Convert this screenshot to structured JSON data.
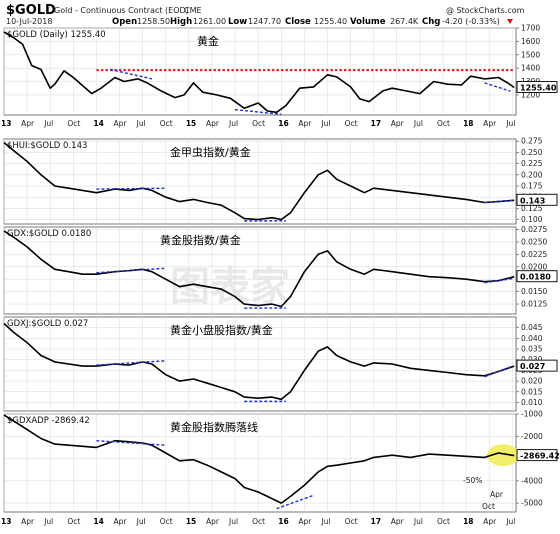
{
  "header": {
    "symbol": "$GOLD",
    "description": "Gold - Continuous Contract (EOD)",
    "exchange": "CME",
    "credit": "@ StockCharts.com",
    "date": "10-Jul-2018",
    "open_label": "Open",
    "open": "1258.50",
    "high_label": "High",
    "high": "1261.00",
    "low_label": "Low",
    "low": "1247.70",
    "close_label": "Close",
    "close": "1255.40",
    "volume_label": "Volume",
    "volume": "267.4K",
    "chg_label": "Chg",
    "chg": "-4.20 (-0.33%)"
  },
  "watermark": "图表家",
  "colors": {
    "price": "#000000",
    "trend_red": "#e01818",
    "trend_blue": "#2233cc",
    "highlight": "#f2ee6a",
    "grid": "#d8d8d8"
  },
  "chart_data": [
    {
      "type": "line",
      "panel_label": "$GOLD (Daily) 1255.40",
      "annotation": "黄金",
      "value_box": "1255.40",
      "ylim": [
        1050,
        1700
      ],
      "yticks": [
        "1700",
        "1600",
        "1500",
        "1400",
        "1300",
        "1200"
      ],
      "x": [
        2013.0,
        2013.1,
        2013.2,
        2013.3,
        2013.4,
        2013.5,
        2013.55,
        2013.65,
        2013.75,
        2013.85,
        2013.95,
        2014.05,
        2014.2,
        2014.3,
        2014.45,
        2014.55,
        2014.7,
        2014.85,
        2014.95,
        2015.05,
        2015.15,
        2015.3,
        2015.45,
        2015.6,
        2015.75,
        2015.85,
        2015.95,
        2016.05,
        2016.2,
        2016.35,
        2016.5,
        2016.6,
        2016.75,
        2016.85,
        2016.95,
        2017.1,
        2017.2,
        2017.35,
        2017.5,
        2017.65,
        2017.8,
        2017.95,
        2018.05,
        2018.2,
        2018.35,
        2018.45,
        2018.52
      ],
      "values": [
        1670,
        1630,
        1580,
        1420,
        1390,
        1250,
        1280,
        1380,
        1330,
        1270,
        1210,
        1250,
        1330,
        1300,
        1320,
        1290,
        1230,
        1180,
        1200,
        1290,
        1220,
        1200,
        1175,
        1100,
        1140,
        1080,
        1070,
        1120,
        1250,
        1260,
        1350,
        1335,
        1260,
        1170,
        1150,
        1230,
        1250,
        1230,
        1210,
        1300,
        1280,
        1275,
        1340,
        1320,
        1330,
        1290,
        1255.4
      ],
      "trendlines": [
        {
          "color": "red",
          "x": [
            2014.0,
            2018.52
          ],
          "y": [
            1385,
            1385
          ]
        },
        {
          "color": "blue",
          "x": [
            2014.15,
            2014.6
          ],
          "y": [
            1390,
            1320
          ]
        },
        {
          "color": "blue",
          "x": [
            2015.5,
            2016.0
          ],
          "y": [
            1090,
            1055
          ]
        },
        {
          "color": "blue",
          "x": [
            2018.2,
            2018.48
          ],
          "y": [
            1290,
            1228
          ]
        }
      ]
    },
    {
      "type": "line",
      "panel_label": "$HUI:$GOLD 0.143",
      "annotation": "金甲虫指数/黄金",
      "value_box": "0.143",
      "ylim": [
        0.09,
        0.28
      ],
      "yticks": [
        "0.275",
        "0.250",
        "0.225",
        "0.200",
        "0.175",
        "0.150",
        "0.125",
        "0.100"
      ],
      "x": [
        2013.0,
        2013.1,
        2013.25,
        2013.4,
        2013.55,
        2013.7,
        2013.85,
        2014.0,
        2014.2,
        2014.35,
        2014.5,
        2014.6,
        2014.75,
        2014.9,
        2015.05,
        2015.2,
        2015.35,
        2015.5,
        2015.6,
        2015.75,
        2015.9,
        2016.0,
        2016.1,
        2016.25,
        2016.4,
        2016.5,
        2016.6,
        2016.75,
        2016.9,
        2017.0,
        2017.2,
        2017.4,
        2017.6,
        2017.8,
        2018.0,
        2018.2,
        2018.35,
        2018.52
      ],
      "values": [
        0.272,
        0.255,
        0.23,
        0.2,
        0.175,
        0.17,
        0.165,
        0.16,
        0.168,
        0.165,
        0.17,
        0.165,
        0.15,
        0.14,
        0.145,
        0.138,
        0.132,
        0.115,
        0.102,
        0.1,
        0.104,
        0.1,
        0.115,
        0.16,
        0.2,
        0.21,
        0.19,
        0.175,
        0.16,
        0.17,
        0.165,
        0.16,
        0.155,
        0.15,
        0.145,
        0.138,
        0.14,
        0.143
      ],
      "trendlines": [
        {
          "color": "blue",
          "x": [
            2014.0,
            2014.75
          ],
          "y": [
            0.168,
            0.17
          ]
        },
        {
          "color": "blue",
          "x": [
            2015.6,
            2016.05
          ],
          "y": [
            0.097,
            0.097
          ]
        },
        {
          "color": "blue",
          "x": [
            2018.2,
            2018.5
          ],
          "y": [
            0.138,
            0.143
          ]
        }
      ]
    },
    {
      "type": "line",
      "panel_label": "GDX:$GOLD 0.0180",
      "annotation": "黄金股指数/黄金",
      "value_box": "0.0180",
      "ylim": [
        0.0105,
        0.028
      ],
      "yticks": [
        "0.0275",
        "0.0250",
        "0.0225",
        "0.0200",
        "0.0175",
        "0.0150",
        "0.0125"
      ],
      "x": [
        2013.0,
        2013.1,
        2013.25,
        2013.4,
        2013.55,
        2013.7,
        2013.85,
        2014.0,
        2014.2,
        2014.35,
        2014.5,
        2014.6,
        2014.75,
        2014.9,
        2015.05,
        2015.2,
        2015.35,
        2015.5,
        2015.6,
        2015.75,
        2015.9,
        2016.0,
        2016.1,
        2016.25,
        2016.4,
        2016.5,
        2016.6,
        2016.75,
        2016.9,
        2017.0,
        2017.2,
        2017.4,
        2017.6,
        2017.8,
        2018.0,
        2018.2,
        2018.35,
        2018.52
      ],
      "values": [
        0.0272,
        0.026,
        0.024,
        0.0215,
        0.0195,
        0.019,
        0.0185,
        0.0185,
        0.019,
        0.0192,
        0.0195,
        0.019,
        0.0175,
        0.016,
        0.0165,
        0.016,
        0.0155,
        0.014,
        0.0125,
        0.0122,
        0.0125,
        0.012,
        0.014,
        0.019,
        0.0225,
        0.0232,
        0.021,
        0.0195,
        0.0185,
        0.0195,
        0.019,
        0.0185,
        0.018,
        0.0178,
        0.0175,
        0.017,
        0.0172,
        0.018
      ],
      "trendlines": [
        {
          "color": "blue",
          "x": [
            2014.0,
            2014.75
          ],
          "y": [
            0.0188,
            0.0197
          ]
        },
        {
          "color": "blue",
          "x": [
            2015.6,
            2016.05
          ],
          "y": [
            0.0117,
            0.0117
          ]
        },
        {
          "color": "blue",
          "x": [
            2018.2,
            2018.5
          ],
          "y": [
            0.0168,
            0.0176
          ]
        }
      ]
    },
    {
      "type": "line",
      "panel_label": "GDXJ:$GOLD 0.027",
      "annotation": "黄金小盘股指数/黄金",
      "value_box": "0.027",
      "ylim": [
        0.006,
        0.05
      ],
      "yticks": [
        "0.045",
        "0.040",
        "0.035",
        "0.030",
        "0.025",
        "0.020",
        "0.015",
        "0.010"
      ],
      "x": [
        2013.0,
        2013.1,
        2013.25,
        2013.4,
        2013.55,
        2013.7,
        2013.85,
        2014.0,
        2014.2,
        2014.35,
        2014.5,
        2014.6,
        2014.75,
        2014.9,
        2015.05,
        2015.2,
        2015.35,
        2015.5,
        2015.6,
        2015.75,
        2015.9,
        2016.0,
        2016.1,
        2016.25,
        2016.4,
        2016.5,
        2016.6,
        2016.75,
        2016.9,
        2017.0,
        2017.2,
        2017.4,
        2017.6,
        2017.8,
        2018.0,
        2018.2,
        2018.35,
        2018.52
      ],
      "values": [
        0.047,
        0.043,
        0.038,
        0.032,
        0.029,
        0.028,
        0.027,
        0.027,
        0.028,
        0.0275,
        0.029,
        0.028,
        0.023,
        0.02,
        0.021,
        0.019,
        0.017,
        0.015,
        0.0125,
        0.012,
        0.0125,
        0.0115,
        0.015,
        0.025,
        0.034,
        0.036,
        0.032,
        0.029,
        0.027,
        0.0285,
        0.028,
        0.026,
        0.025,
        0.024,
        0.023,
        0.0225,
        0.0245,
        0.027
      ],
      "trendlines": [
        {
          "color": "blue",
          "x": [
            2014.0,
            2014.75
          ],
          "y": [
            0.0275,
            0.0295
          ]
        },
        {
          "color": "blue",
          "x": [
            2015.6,
            2016.05
          ],
          "y": [
            0.0105,
            0.0105
          ]
        },
        {
          "color": "blue",
          "x": [
            2018.2,
            2018.5
          ],
          "y": [
            0.022,
            0.027
          ]
        }
      ]
    },
    {
      "type": "line",
      "panel_label": "$GDXADP -2869.42",
      "annotation": "黄金股指数腾落线",
      "value_box": "-2869.42",
      "ylim": [
        -5400,
        -1000
      ],
      "yticks": [
        "-1000",
        "-2000",
        "-3000",
        "-4000",
        "-5000"
      ],
      "x": [
        2013.0,
        2013.1,
        2013.25,
        2013.4,
        2013.55,
        2013.7,
        2013.85,
        2014.0,
        2014.2,
        2014.35,
        2014.5,
        2014.6,
        2014.75,
        2014.9,
        2015.05,
        2015.2,
        2015.35,
        2015.5,
        2015.6,
        2015.75,
        2015.9,
        2016.0,
        2016.1,
        2016.25,
        2016.4,
        2016.5,
        2016.6,
        2016.75,
        2016.9,
        2017.0,
        2017.2,
        2017.4,
        2017.6,
        2017.8,
        2018.0,
        2018.2,
        2018.35,
        2018.52
      ],
      "values": [
        -1050,
        -1300,
        -1700,
        -2100,
        -2350,
        -2400,
        -2450,
        -2500,
        -2200,
        -2250,
        -2300,
        -2400,
        -2750,
        -3100,
        -3050,
        -3300,
        -3600,
        -3900,
        -4300,
        -4500,
        -4800,
        -5000,
        -4700,
        -4200,
        -3600,
        -3350,
        -3300,
        -3200,
        -3100,
        -2950,
        -2850,
        -2950,
        -2800,
        -2850,
        -2900,
        -2950,
        -2750,
        -2869.42
      ],
      "highlight": {
        "x": 2018.4,
        "y": -2850
      },
      "trendlines": [
        {
          "color": "blue",
          "x": [
            2014.0,
            2014.75
          ],
          "y": [
            -2200,
            -2400
          ]
        },
        {
          "color": "blue",
          "x": [
            2015.95,
            2016.35
          ],
          "y": [
            -5250,
            -4650
          ]
        }
      ],
      "callout": {
        "neg_label": "-50%",
        "month_label": "Apr",
        "month_label_2": "Oct"
      }
    }
  ],
  "x_axis": {
    "domain": [
      2013.0,
      2018.54
    ],
    "ticks": [
      {
        "x": 2013.0,
        "label": "13",
        "year": true
      },
      {
        "x": 2013.25,
        "label": "Apr",
        "year": false
      },
      {
        "x": 2013.5,
        "label": "Jul",
        "year": false
      },
      {
        "x": 2013.75,
        "label": "Oct",
        "year": false
      },
      {
        "x": 2014.0,
        "label": "14",
        "year": true
      },
      {
        "x": 2014.25,
        "label": "Apr",
        "year": false
      },
      {
        "x": 2014.5,
        "label": "Jul",
        "year": false
      },
      {
        "x": 2014.75,
        "label": "Oct",
        "year": false
      },
      {
        "x": 2015.0,
        "label": "15",
        "year": true
      },
      {
        "x": 2015.25,
        "label": "Apr",
        "year": false
      },
      {
        "x": 2015.5,
        "label": "Jul",
        "year": false
      },
      {
        "x": 2015.75,
        "label": "Oct",
        "year": false
      },
      {
        "x": 2016.0,
        "label": "16",
        "year": true
      },
      {
        "x": 2016.25,
        "label": "Apr",
        "year": false
      },
      {
        "x": 2016.5,
        "label": "Jul",
        "year": false
      },
      {
        "x": 2016.75,
        "label": "Oct",
        "year": false
      },
      {
        "x": 2017.0,
        "label": "17",
        "year": true
      },
      {
        "x": 2017.25,
        "label": "Apr",
        "year": false
      },
      {
        "x": 2017.5,
        "label": "Jul",
        "year": false
      },
      {
        "x": 2017.75,
        "label": "Oct",
        "year": false
      },
      {
        "x": 2018.0,
        "label": "18",
        "year": true
      },
      {
        "x": 2018.25,
        "label": "Apr",
        "year": false
      },
      {
        "x": 2018.5,
        "label": "Jul",
        "year": false
      }
    ]
  }
}
